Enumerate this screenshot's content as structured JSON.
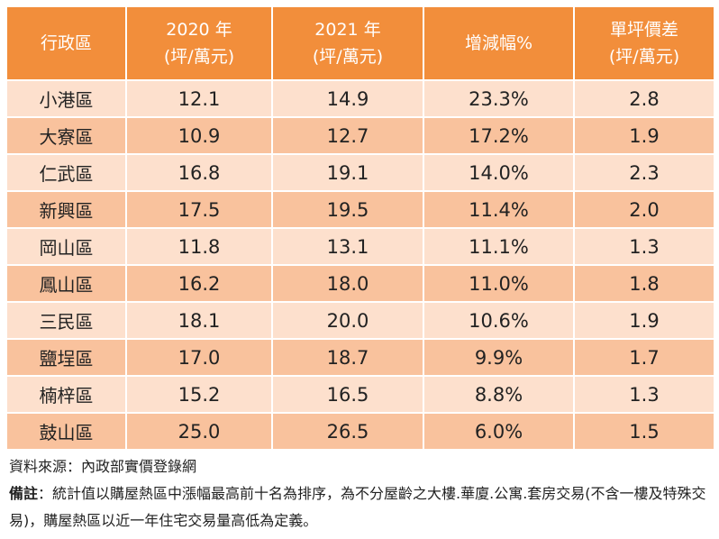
{
  "table": {
    "headers": [
      {
        "line1": "行政區",
        "line2": ""
      },
      {
        "line1": "2020 年",
        "line2": "(坪/萬元)"
      },
      {
        "line1": "2021 年",
        "line2": "(坪/萬元)"
      },
      {
        "line1": "增減幅%",
        "line2": ""
      },
      {
        "line1": "單坪價差",
        "line2": "(坪/萬元)"
      }
    ],
    "rows": [
      {
        "district": "小港區",
        "y2020": "12.1",
        "y2021": "14.9",
        "change": "23.3%",
        "diff": "2.8"
      },
      {
        "district": "大寮區",
        "y2020": "10.9",
        "y2021": "12.7",
        "change": "17.2%",
        "diff": "1.9"
      },
      {
        "district": "仁武區",
        "y2020": "16.8",
        "y2021": "19.1",
        "change": "14.0%",
        "diff": "2.3"
      },
      {
        "district": "新興區",
        "y2020": "17.5",
        "y2021": "19.5",
        "change": "11.4%",
        "diff": "2.0"
      },
      {
        "district": "岡山區",
        "y2020": "11.8",
        "y2021": "13.1",
        "change": "11.1%",
        "diff": "1.3"
      },
      {
        "district": "鳳山區",
        "y2020": "16.2",
        "y2021": "18.0",
        "change": "11.0%",
        "diff": "1.8"
      },
      {
        "district": "三民區",
        "y2020": "18.1",
        "y2021": "20.0",
        "change": "10.6%",
        "diff": "1.9"
      },
      {
        "district": "鹽埕區",
        "y2020": "17.0",
        "y2021": "18.7",
        "change": "9.9%",
        "diff": "1.7"
      },
      {
        "district": "楠梓區",
        "y2020": "15.2",
        "y2021": "16.5",
        "change": "8.8%",
        "diff": "1.3"
      },
      {
        "district": "鼓山區",
        "y2020": "25.0",
        "y2021": "26.5",
        "change": "6.0%",
        "diff": "1.5"
      }
    ]
  },
  "notes": {
    "source": "資料來源：內政部實價登錄網",
    "remark_label": "備註",
    "remark_text": "：統計值以購屋熱區中漲幅最高前十名為排序，為不分屋齡之大樓.華廈.公寓.套房交易(不含一樓及特殊交易)，購屋熱區以近一年住宅交易量高低為定義。"
  }
}
